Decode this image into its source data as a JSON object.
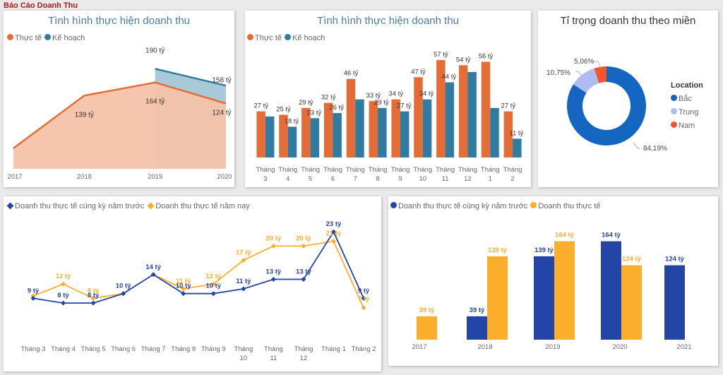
{
  "page": {
    "title": "Báo Cáo Doanh Thu"
  },
  "colors": {
    "actual": "#e46c37",
    "plan": "#2f7ca0",
    "plan_fill": "#a9c8d8",
    "actual_fill": "#f4c2aa",
    "prev": "#2345a5",
    "cur": "#fbae2c",
    "north": "#1466c0",
    "central": "#aebcf3",
    "south": "#f2542d"
  },
  "chart_data": [
    {
      "id": "area-yearly",
      "type": "area",
      "title": "Tình hình thực hiện doanh thu",
      "legend": [
        "Thực tế",
        "Kế hoạch"
      ],
      "categories": [
        "2017",
        "2018",
        "2019",
        "2020"
      ],
      "series": [
        {
          "name": "Thực tế",
          "values": [
            39,
            139,
            164,
            124
          ],
          "labels": [
            "",
            "139 tỷ",
            "164 tỷ",
            "124 tỷ"
          ]
        },
        {
          "name": "Kế hoạch",
          "values": [
            null,
            null,
            190,
            158
          ],
          "labels": [
            "",
            "",
            "190 tỷ",
            "158 tỷ"
          ]
        }
      ],
      "ylim": [
        0,
        220
      ]
    },
    {
      "id": "bar-monthly",
      "type": "bar",
      "title": "Tình hình thực hiện doanh thu",
      "legend": [
        "Thực tế",
        "Kế hoạch"
      ],
      "categories": [
        "Tháng 3",
        "Tháng 4",
        "Tháng 5",
        "Tháng 6",
        "Tháng 7",
        "Tháng 8",
        "Tháng 9",
        "Tháng 10",
        "Tháng 11",
        "Tháng 12",
        "Tháng 1",
        "Tháng 2"
      ],
      "category_lines": [
        [
          "Tháng",
          "3"
        ],
        [
          "Tháng",
          "4"
        ],
        [
          "Tháng",
          "5"
        ],
        [
          "Tháng",
          "6"
        ],
        [
          "Tháng",
          "7"
        ],
        [
          "Tháng",
          "8"
        ],
        [
          "Tháng",
          "9"
        ],
        [
          "Tháng",
          "10"
        ],
        [
          "Tháng",
          "11"
        ],
        [
          "Tháng",
          "12"
        ],
        [
          "Tháng",
          "1"
        ],
        [
          "Tháng",
          "2"
        ]
      ],
      "series": [
        {
          "name": "Thực tế",
          "values": [
            27,
            25,
            29,
            32,
            46,
            33,
            34,
            47,
            57,
            54,
            56,
            27
          ],
          "labels": [
            "27 tỷ",
            "25 tỷ",
            "29 tỷ",
            "32 tỷ",
            "46 tỷ",
            "33 tỷ",
            "34 tỷ",
            "47 tỷ",
            "57 tỷ",
            "54 tỷ",
            "56 tỷ",
            "27 tỷ"
          ]
        },
        {
          "name": "Kế hoạch",
          "values": [
            24,
            18,
            23,
            26,
            34,
            29,
            27,
            34,
            44,
            50,
            29,
            11
          ],
          "labels": [
            "",
            "18 tỷ",
            "23 tỷ",
            "26 tỷ",
            "",
            "29 tỷ",
            "27 tỷ",
            "34 tỷ",
            "44 tỷ",
            "",
            "",
            "11 tỷ"
          ]
        }
      ],
      "ylim": [
        0,
        62
      ]
    },
    {
      "id": "donut-region",
      "type": "pie",
      "title": "Tỉ trọng doanh thu theo miền",
      "legend_title": "Location",
      "slices": [
        {
          "name": "Bắc",
          "value": 84.19,
          "label": "84,19%"
        },
        {
          "name": "Trung",
          "value": 10.75,
          "label": "10,75%"
        },
        {
          "name": "Nam",
          "value": 5.06,
          "label": "5,06%"
        }
      ]
    },
    {
      "id": "line-monthly",
      "type": "line",
      "legend": [
        "Doanh thu thực tế cùng kỳ năm trước",
        "Doanh thu thực tế năm nay"
      ],
      "categories": [
        "Tháng 3",
        "Tháng 4",
        "Tháng 5",
        "Tháng 6",
        "Tháng 7",
        "Tháng 8",
        "Tháng 9",
        "Tháng 10",
        "Tháng 11",
        "Tháng 12",
        "Tháng 1",
        "Tháng 2"
      ],
      "category_lines": [
        [
          "Tháng 3"
        ],
        [
          "Tháng 4"
        ],
        [
          "Tháng 5"
        ],
        [
          "Tháng 6"
        ],
        [
          "Tháng 7"
        ],
        [
          "Tháng 8"
        ],
        [
          "Tháng 9"
        ],
        [
          "Tháng",
          "10"
        ],
        [
          "Tháng",
          "11"
        ],
        [
          "Tháng",
          "12"
        ],
        [
          "Tháng 1"
        ],
        [
          "Tháng 2"
        ]
      ],
      "series": [
        {
          "name": "Doanh thu thực tế cùng kỳ năm trước",
          "values": [
            9,
            8,
            8,
            10,
            14,
            10,
            10,
            11,
            13,
            13,
            23,
            9
          ],
          "labels": [
            "9 tỷ",
            "8 tỷ",
            "8 tỷ",
            "10 tỷ",
            "14 tỷ",
            "10 tỷ",
            "10 tỷ",
            "11 tỷ",
            "13 tỷ",
            "13 tỷ",
            "23 tỷ",
            "9 tỷ"
          ]
        },
        {
          "name": "Doanh thu thực tế năm nay",
          "values": [
            9.5,
            12,
            9,
            10,
            14,
            11,
            12,
            17,
            20,
            20,
            21,
            7
          ],
          "labels": [
            "",
            "12 tỷ",
            "9 tỷ",
            "",
            "",
            "11 tỷ",
            "12 tỷ",
            "17 tỷ",
            "20 tỷ",
            "20 tỷ",
            "21 tỷ",
            "7 tỷ"
          ]
        }
      ],
      "ylim": [
        0,
        26
      ]
    },
    {
      "id": "bar-yearly",
      "type": "bar",
      "legend": [
        "Doanh thu thực tế cùng kỳ năm trước",
        "Doanh thu thực tế"
      ],
      "categories": [
        "2017",
        "2018",
        "2019",
        "2020",
        "2021"
      ],
      "series": [
        {
          "name": "Doanh thu thực tế cùng kỳ năm trước",
          "values": [
            null,
            39,
            139,
            164,
            124
          ],
          "labels": [
            "",
            "39 tỷ",
            "139 tỷ",
            "164 tỷ",
            "124 tỷ"
          ]
        },
        {
          "name": "Doanh thu thực tế",
          "values": [
            39,
            139,
            164,
            124,
            null
          ],
          "labels": [
            "39 tỷ",
            "139 tỷ",
            "164 tỷ",
            "124 tỷ",
            ""
          ]
        }
      ],
      "ylim": [
        0,
        180
      ]
    }
  ]
}
